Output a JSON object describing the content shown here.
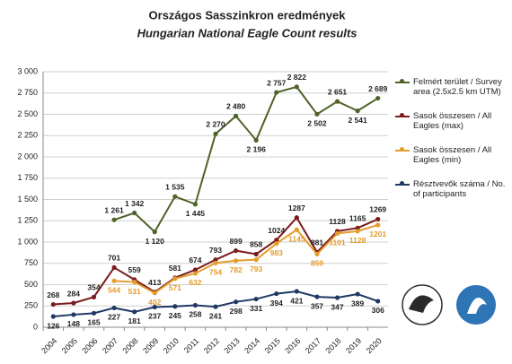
{
  "chart_data": {
    "type": "line",
    "title": "Országos Sasszinkron eredmények",
    "subtitle": "Hungarian National Eagle Count results",
    "categories": [
      "2004",
      "2005",
      "2006",
      "2007",
      "2008",
      "2009",
      "2010",
      "2011",
      "2012",
      "2013",
      "2014",
      "2015",
      "2016",
      "2017",
      "2018",
      "2019",
      "2020"
    ],
    "ylim": [
      0,
      3000
    ],
    "yticks": [
      0,
      250,
      500,
      750,
      {
        "value": 1000,
        "label": "1 000"
      },
      {
        "value": 1250,
        "label": "1 250"
      },
      {
        "value": 1500,
        "label": "1 500"
      },
      {
        "value": 1750,
        "label": "1 750"
      },
      {
        "value": 2000,
        "label": "2 000"
      },
      {
        "value": 2250,
        "label": "2 250"
      },
      {
        "value": 2500,
        "label": "2 500"
      },
      {
        "value": 2750,
        "label": "2 750"
      },
      {
        "value": 3000,
        "label": "3 000"
      }
    ],
    "grid": true,
    "legend": "right",
    "series": [
      {
        "name": "Felmért terület / Survey area (2.5x2.5 km UTM)",
        "color": "#4f6228",
        "values": [
          null,
          null,
          null,
          1261,
          1342,
          1120,
          1535,
          1445,
          2270,
          2480,
          2196,
          2757,
          2822,
          2502,
          2651,
          2541,
          2689
        ],
        "value_labels": [
          null,
          null,
          null,
          "1 261",
          "1 342",
          "1 120",
          "1 535",
          "1 445",
          "2 270",
          "2 480",
          "2 196",
          "2 757",
          "2 822",
          "2 502",
          "2 651",
          "2 541",
          "2 689"
        ]
      },
      {
        "name": "Sasok összesen / All Eagles (max)",
        "color": "#7a1c1c",
        "values": [
          268,
          284,
          354,
          701,
          559,
          413,
          581,
          674,
          793,
          899,
          858,
          1024,
          1287,
          881,
          1128,
          1165,
          1269
        ]
      },
      {
        "name": "Sasok összesen / All Eagles (min)",
        "color": "#e49c2c",
        "values": [
          null,
          null,
          null,
          544,
          531,
          402,
          571,
          632,
          754,
          782,
          793,
          983,
          1145,
          859,
          1101,
          1128,
          1201
        ]
      },
      {
        "name": "Résztvevők száma / No. of participants",
        "color": "#1f3864",
        "values": [
          126,
          148,
          165,
          227,
          181,
          237,
          245,
          258,
          241,
          298,
          331,
          394,
          421,
          357,
          347,
          389,
          306
        ]
      }
    ]
  }
}
